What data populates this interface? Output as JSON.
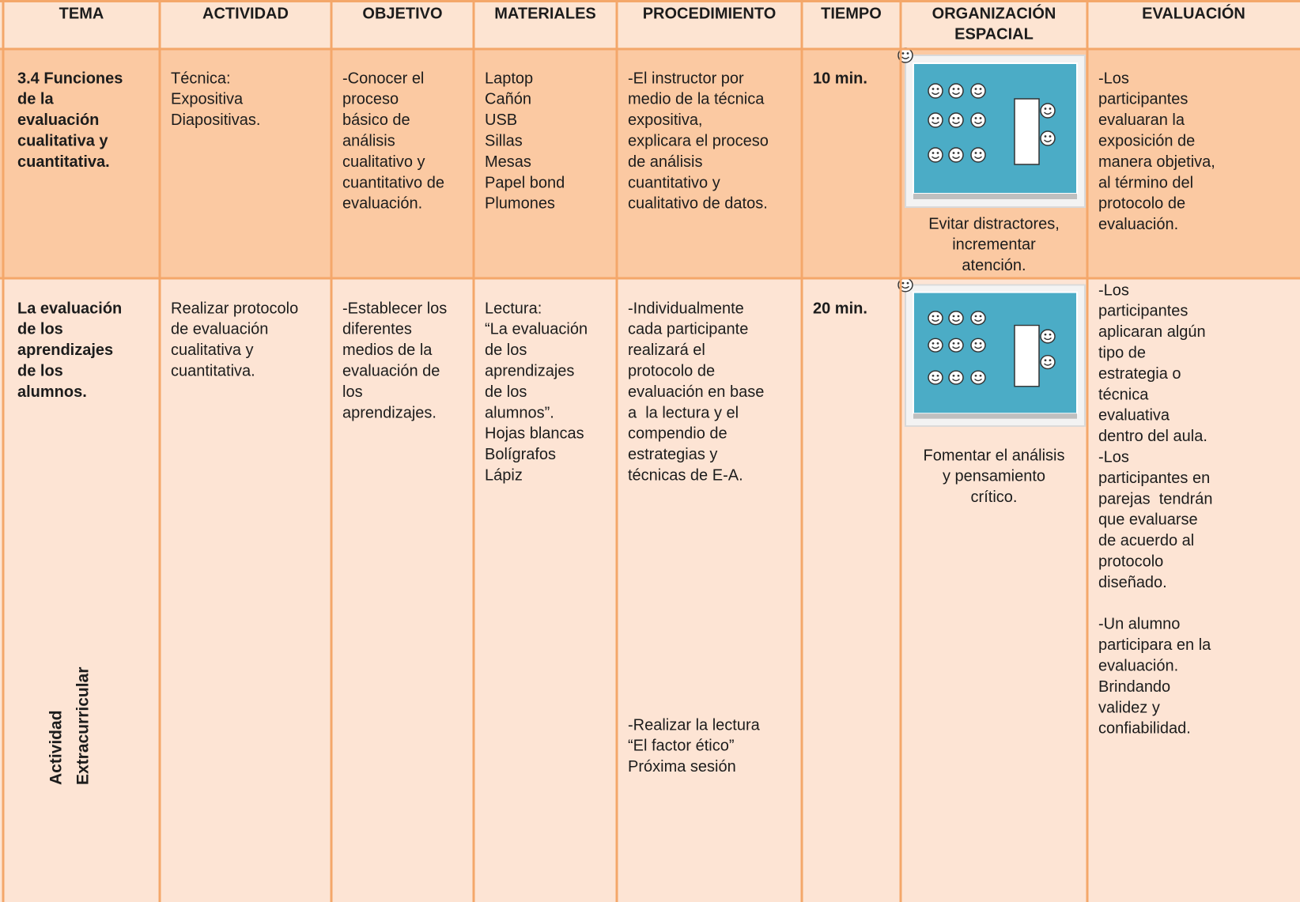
{
  "table": {
    "header": [
      [
        "TEMA"
      ],
      [
        "ACTIVIDAD"
      ],
      [
        "OBJETIVO"
      ],
      [
        "MATERIALES"
      ],
      [
        "PROCEDIMIENTO"
      ],
      [
        "TIEMPO"
      ],
      [
        "ORGANIZACIÓN",
        "ESPACIAL"
      ],
      [
        "EVALUACIÓN"
      ]
    ],
    "rows": [
      {
        "cells": [
          [
            [
              "3.4 Funciones",
              "de la",
              "evaluación",
              "cualitativa y",
              "cuantitativa."
            ]
          ],
          [
            [
              "Técnica:",
              "Expositiva",
              "Diapositivas."
            ]
          ],
          [
            [
              "-Conocer el",
              "proceso",
              "básico de",
              "análisis",
              "cualitativo y",
              "cuantitativo de",
              "evaluación."
            ]
          ],
          [
            [
              "Laptop",
              "Cañón",
              "USB",
              "Sillas",
              "Mesas",
              "Papel bond",
              "Plumones"
            ]
          ],
          [
            [
              "-El instructor por",
              "medio de la técnica",
              "expositiva,",
              "explicara el proceso",
              "de análisis",
              "cuantitativo y",
              "cualitativo de datos."
            ]
          ],
          [
            [
              "10 min."
            ]
          ],
          [
            [
              "Evitar distractores,",
              "incrementar",
              "atención."
            ]
          ],
          [
            [
              "-Los",
              "participantes",
              "evaluaran la",
              "exposición de",
              "manera objetiva,",
              "al término del",
              "protocolo de",
              "evaluación."
            ]
          ]
        ]
      },
      {
        "cells": [
          [
            [
              "La evaluación",
              "de los",
              "aprendizajes",
              "de los",
              "alumnos."
            ]
          ],
          [
            [
              "Realizar protocolo",
              "de evaluación",
              "cualitativa y",
              "cuantitativa."
            ]
          ],
          [
            [
              "-Establecer los",
              "diferentes",
              "medios de la",
              "evaluación de",
              "los",
              "aprendizajes."
            ]
          ],
          [
            [
              "Lectura:",
              "“La evaluación",
              "de los",
              "aprendizajes",
              "de los",
              "alumnos”.",
              "Hojas blancas",
              "Bolígrafos",
              "Lápiz"
            ]
          ],
          [
            [
              "-Individualmente",
              "cada participante",
              "realizará el",
              "protocolo de",
              "evaluación en base",
              "a  la lectura y el",
              "compendio de",
              "estrategias y",
              "técnicas de E-A."
            ],
            [
              "-Realizar la lectura",
              "“El factor ético”",
              "Próxima sesión"
            ]
          ],
          [
            [
              "20 min."
            ]
          ],
          [
            [
              "Fomentar el análisis",
              "y pensamiento",
              "crítico."
            ]
          ],
          [
            [
              "-Los",
              "participantes",
              "aplicaran algún",
              "tipo de",
              "estrategia o",
              "técnica",
              "evaluativa",
              "dentro del aula.",
              "-Los",
              "participantes en",
              "parejas  tendrán",
              "que evaluarse",
              "de acuerdo al",
              "protocolo",
              "diseñado."
            ],
            [
              "-Un alumno",
              "participara en la",
              "evaluación.",
              "Brindando",
              "validez y",
              "confiabilidad."
            ]
          ]
        ],
        "side_note": [
          "Actividad",
          "Extracurricular"
        ]
      }
    ]
  }
}
